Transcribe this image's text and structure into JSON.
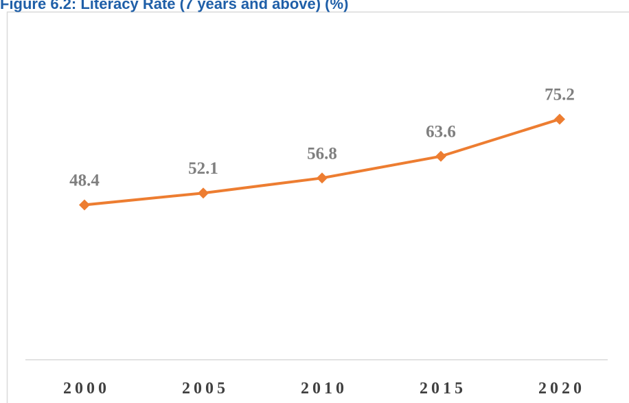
{
  "chart_data": {
    "type": "line",
    "title": "Figure 6.2: Literacy Rate (7 years and above) (%)",
    "categories": [
      "2000",
      "2005",
      "2010",
      "2015",
      "2020"
    ],
    "values": [
      48.4,
      52.1,
      56.8,
      63.6,
      75.2
    ],
    "color": "#ed7d31",
    "ylim": [
      0,
      100
    ]
  }
}
